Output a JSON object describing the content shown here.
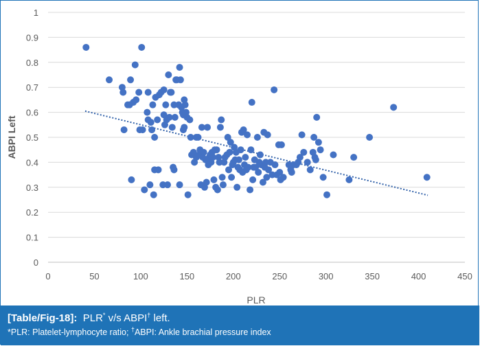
{
  "chart_data": {
    "type": "scatter",
    "xlabel": "PLR",
    "ylabel": "ABPI Left",
    "xlim": [
      0,
      450
    ],
    "ylim": [
      0,
      1
    ],
    "xticks": [
      "0",
      "50",
      "100",
      "150",
      "200",
      "250",
      "300",
      "350",
      "400",
      "450"
    ],
    "yticks": [
      "0",
      "0.1",
      "0.2",
      "0.3",
      "0.4",
      "0.5",
      "0.6",
      "0.7",
      "0.8",
      "0.9",
      "1"
    ],
    "grid": true,
    "marker_color": "#4472c4",
    "trendline": {
      "type": "linear",
      "style": "dotted",
      "color": "#2e5fa8",
      "x": [
        40,
        410
      ],
      "y": [
        0.605,
        0.268
      ]
    },
    "points": [
      [
        41,
        0.86
      ],
      [
        66,
        0.73
      ],
      [
        80,
        0.7
      ],
      [
        81,
        0.68
      ],
      [
        82,
        0.53
      ],
      [
        86,
        0.63
      ],
      [
        88,
        0.63
      ],
      [
        89,
        0.73
      ],
      [
        90,
        0.33
      ],
      [
        92,
        0.64
      ],
      [
        94,
        0.79
      ],
      [
        95,
        0.65
      ],
      [
        98,
        0.68
      ],
      [
        99,
        0.53
      ],
      [
        101,
        0.86
      ],
      [
        102,
        0.53
      ],
      [
        104,
        0.29
      ],
      [
        107,
        0.6
      ],
      [
        108,
        0.57
      ],
      [
        108,
        0.68
      ],
      [
        110,
        0.31
      ],
      [
        111,
        0.56
      ],
      [
        112,
        0.53
      ],
      [
        113,
        0.63
      ],
      [
        114,
        0.27
      ],
      [
        115,
        0.37
      ],
      [
        115,
        0.5
      ],
      [
        116,
        0.66
      ],
      [
        118,
        0.57
      ],
      [
        119,
        0.37
      ],
      [
        120,
        0.67
      ],
      [
        122,
        0.68
      ],
      [
        124,
        0.31
      ],
      [
        125,
        0.59
      ],
      [
        125,
        0.69
      ],
      [
        126,
        0.55
      ],
      [
        127,
        0.63
      ],
      [
        128,
        0.57
      ],
      [
        129,
        0.31
      ],
      [
        130,
        0.75
      ],
      [
        131,
        0.58
      ],
      [
        132,
        0.68
      ],
      [
        133,
        0.68
      ],
      [
        134,
        0.54
      ],
      [
        135,
        0.38
      ],
      [
        136,
        0.63
      ],
      [
        136,
        0.37
      ],
      [
        137,
        0.58
      ],
      [
        138,
        0.73
      ],
      [
        139,
        0.73
      ],
      [
        141,
        0.63
      ],
      [
        142,
        0.31
      ],
      [
        142,
        0.78
      ],
      [
        143,
        0.73
      ],
      [
        144,
        0.62
      ],
      [
        145,
        0.6
      ],
      [
        146,
        0.59
      ],
      [
        146,
        0.53
      ],
      [
        147,
        0.65
      ],
      [
        147,
        0.54
      ],
      [
        148,
        0.63
      ],
      [
        149,
        0.6
      ],
      [
        150,
        0.58
      ],
      [
        151,
        0.27
      ],
      [
        153,
        0.57
      ],
      [
        154,
        0.5
      ],
      [
        155,
        0.43
      ],
      [
        157,
        0.44
      ],
      [
        158,
        0.4
      ],
      [
        160,
        0.5
      ],
      [
        160,
        0.42
      ],
      [
        162,
        0.5
      ],
      [
        163,
        0.43
      ],
      [
        164,
        0.45
      ],
      [
        165,
        0.31
      ],
      [
        166,
        0.54
      ],
      [
        167,
        0.42
      ],
      [
        168,
        0.44
      ],
      [
        169,
        0.3
      ],
      [
        170,
        0.41
      ],
      [
        171,
        0.32
      ],
      [
        172,
        0.54
      ],
      [
        173,
        0.39
      ],
      [
        174,
        0.42
      ],
      [
        175,
        0.43
      ],
      [
        176,
        0.4
      ],
      [
        177,
        0.44
      ],
      [
        178,
        0.42
      ],
      [
        179,
        0.33
      ],
      [
        180,
        0.45
      ],
      [
        181,
        0.3
      ],
      [
        182,
        0.45
      ],
      [
        183,
        0.29
      ],
      [
        184,
        0.42
      ],
      [
        185,
        0.4
      ],
      [
        186,
        0.54
      ],
      [
        187,
        0.57
      ],
      [
        188,
        0.34
      ],
      [
        189,
        0.31
      ],
      [
        190,
        0.4
      ],
      [
        191,
        0.42
      ],
      [
        193,
        0.43
      ],
      [
        194,
        0.5
      ],
      [
        195,
        0.37
      ],
      [
        196,
        0.44
      ],
      [
        197,
        0.48
      ],
      [
        198,
        0.34
      ],
      [
        199,
        0.39
      ],
      [
        200,
        0.4
      ],
      [
        201,
        0.46
      ],
      [
        202,
        0.41
      ],
      [
        203,
        0.44
      ],
      [
        204,
        0.3
      ],
      [
        205,
        0.38
      ],
      [
        206,
        0.41
      ],
      [
        207,
        0.37
      ],
      [
        208,
        0.45
      ],
      [
        209,
        0.52
      ],
      [
        210,
        0.36
      ],
      [
        211,
        0.53
      ],
      [
        212,
        0.39
      ],
      [
        213,
        0.42
      ],
      [
        214,
        0.37
      ],
      [
        215,
        0.51
      ],
      [
        216,
        0.38
      ],
      [
        218,
        0.29
      ],
      [
        219,
        0.45
      ],
      [
        220,
        0.64
      ],
      [
        221,
        0.33
      ],
      [
        222,
        0.38
      ],
      [
        223,
        0.41
      ],
      [
        224,
        0.38
      ],
      [
        226,
        0.5
      ],
      [
        227,
        0.36
      ],
      [
        228,
        0.4
      ],
      [
        229,
        0.43
      ],
      [
        230,
        0.39
      ],
      [
        232,
        0.32
      ],
      [
        233,
        0.52
      ],
      [
        234,
        0.38
      ],
      [
        235,
        0.4
      ],
      [
        236,
        0.34
      ],
      [
        237,
        0.51
      ],
      [
        238,
        0.37
      ],
      [
        240,
        0.4
      ],
      [
        242,
        0.35
      ],
      [
        244,
        0.69
      ],
      [
        245,
        0.39
      ],
      [
        247,
        0.35
      ],
      [
        249,
        0.47
      ],
      [
        250,
        0.36
      ],
      [
        251,
        0.33
      ],
      [
        252,
        0.47
      ],
      [
        254,
        0.34
      ],
      [
        260,
        0.39
      ],
      [
        262,
        0.37
      ],
      [
        263,
        0.36
      ],
      [
        265,
        0.39
      ],
      [
        268,
        0.39
      ],
      [
        270,
        0.4
      ],
      [
        272,
        0.42
      ],
      [
        274,
        0.51
      ],
      [
        276,
        0.44
      ],
      [
        280,
        0.4
      ],
      [
        283,
        0.37
      ],
      [
        286,
        0.44
      ],
      [
        287,
        0.5
      ],
      [
        288,
        0.42
      ],
      [
        289,
        0.41
      ],
      [
        290,
        0.58
      ],
      [
        292,
        0.48
      ],
      [
        294,
        0.45
      ],
      [
        297,
        0.34
      ],
      [
        301,
        0.27
      ],
      [
        308,
        0.43
      ],
      [
        325,
        0.33
      ],
      [
        330,
        0.42
      ],
      [
        347,
        0.5
      ],
      [
        373,
        0.62
      ],
      [
        409,
        0.34
      ]
    ]
  },
  "caption": {
    "label": "[Table/Fig-18]:",
    "title_prefix": "PLR",
    "title_sup1": "*",
    "title_mid": " v/s ABPI",
    "title_sup2": "†",
    "title_suffix": " left.",
    "footnote_part1": "*PLR: Platelet-lymphocyte ratio; ",
    "footnote_sup": "†",
    "footnote_part2": "ABPI: Ankle brachial pressure index"
  }
}
